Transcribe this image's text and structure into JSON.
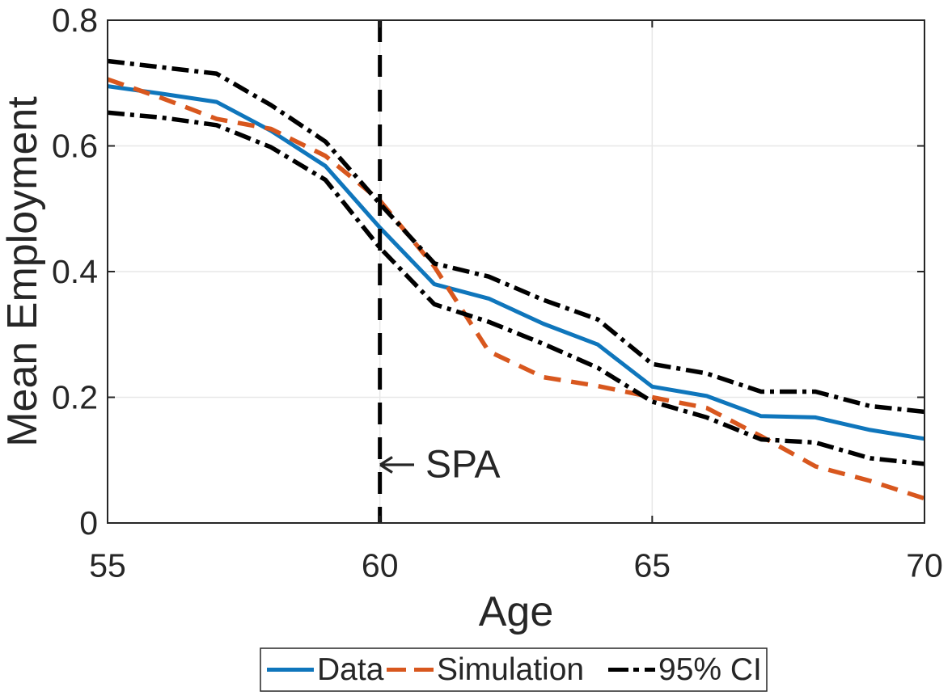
{
  "chart_data": {
    "type": "line",
    "title": "",
    "xlabel": "Age",
    "ylabel": "Mean Employment",
    "xlim": [
      55,
      70
    ],
    "ylim": [
      0,
      0.8
    ],
    "xticks": {
      "values": [
        55,
        60,
        65,
        70
      ],
      "labels": [
        "55",
        "60",
        "65",
        "70"
      ]
    },
    "yticks": {
      "values": [
        0,
        0.2,
        0.4,
        0.6,
        0.8
      ],
      "labels": [
        "0",
        "0.2",
        "0.4",
        "0.6",
        "0.8"
      ]
    },
    "grid": true,
    "x": [
      55,
      56,
      57,
      58,
      59,
      60,
      61,
      62,
      63,
      64,
      65,
      66,
      67,
      68,
      69,
      70
    ],
    "series": [
      {
        "name": "Data",
        "style": "solid",
        "color": "#0f76bc",
        "values": [
          0.695,
          0.683,
          0.67,
          0.624,
          0.568,
          0.47,
          0.38,
          0.357,
          0.317,
          0.284,
          0.217,
          0.202,
          0.17,
          0.168,
          0.148,
          0.134
        ]
      },
      {
        "name": "Simulation",
        "style": "dashed",
        "color": "#d8571e",
        "values": [
          0.706,
          0.676,
          0.643,
          0.627,
          0.584,
          0.513,
          0.408,
          0.273,
          0.232,
          0.218,
          0.2,
          0.183,
          0.138,
          0.09,
          0.067,
          0.039
        ]
      },
      {
        "name": "95% CI upper",
        "style": "dashdot",
        "color": "#000000",
        "values": [
          0.735,
          0.725,
          0.715,
          0.665,
          0.607,
          0.508,
          0.413,
          0.392,
          0.355,
          0.324,
          0.253,
          0.238,
          0.209,
          0.209,
          0.186,
          0.177
        ]
      },
      {
        "name": "95% CI lower",
        "style": "dashdot",
        "color": "#000000",
        "values": [
          0.653,
          0.645,
          0.633,
          0.598,
          0.546,
          0.438,
          0.348,
          0.32,
          0.285,
          0.247,
          0.193,
          0.168,
          0.133,
          0.128,
          0.103,
          0.094
        ]
      }
    ],
    "annotations": {
      "spa_line": {
        "type": "vline",
        "x": 60,
        "style": "dashed",
        "color": "#000000"
      },
      "spa_label": {
        "text": "SPA",
        "arrow": "left-arrow",
        "x": 60,
        "y": 0.093
      }
    },
    "legend": {
      "position": "bottom-center-outside",
      "border": true,
      "entries": [
        {
          "label": "Data",
          "style": "solid",
          "color": "#0f76bc"
        },
        {
          "label": "Simulation",
          "style": "dashed",
          "color": "#d8571e"
        },
        {
          "label": "95% CI",
          "style": "dashdot",
          "color": "#000000"
        }
      ]
    },
    "style": {
      "axis_color": "#262626",
      "grid_color": "#e7e7e7",
      "background": "#ffffff"
    }
  }
}
